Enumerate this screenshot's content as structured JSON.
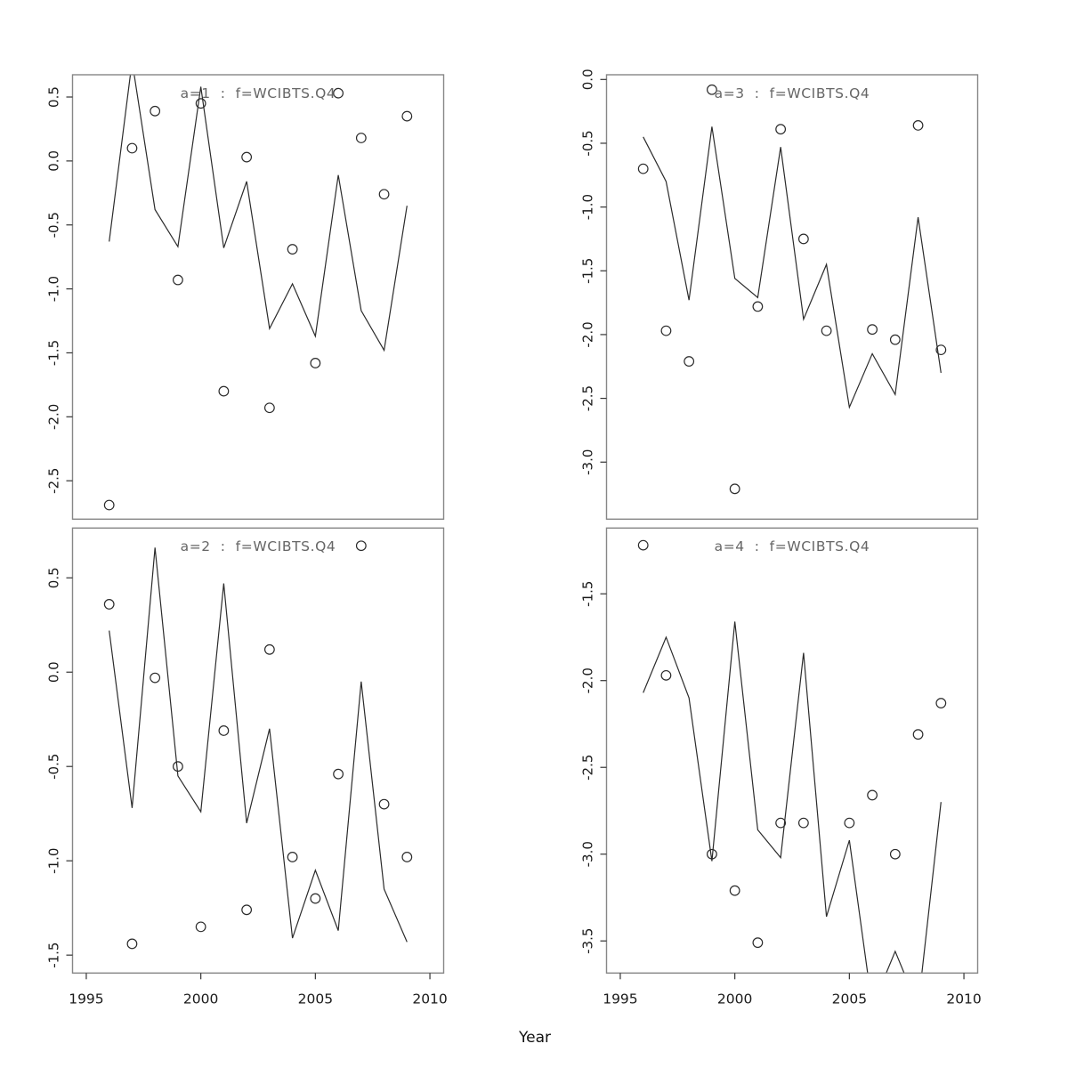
{
  "figure": {
    "background": "#ffffff",
    "colors": {
      "line": "#2b2b2b",
      "point": "#2b2b2b",
      "box": "#878787",
      "tick": "#333333",
      "tick_label": "#1a1a1a",
      "title": "#666666"
    }
  },
  "chart_data": {
    "type": "line",
    "description": "2x2 panel figure: observed points (circles) and fitted line per age group a=1..4, factor f=WCIBTS.Q4, versus Year",
    "grid": "off",
    "legend": "none",
    "x": {
      "label": "Year",
      "years": [
        1996,
        1997,
        1998,
        1999,
        2000,
        2001,
        2002,
        2003,
        2004,
        2005,
        2006,
        2007,
        2008,
        2009
      ],
      "ticks": [
        1995,
        2000,
        2005,
        2010
      ],
      "tick_labels": [
        "1995",
        "2000",
        "2005",
        "2010"
      ],
      "domain": [
        1994.4,
        2010.6
      ]
    },
    "panels": [
      {
        "title": "a=1  :  f=WCIBTS.Q4",
        "row": 0,
        "col": 0,
        "y_domain": [
          -2.8,
          0.674
        ],
        "y_ticks": [
          0.5,
          0.0,
          -0.5,
          -1.0,
          -1.5,
          -2.0,
          -2.5
        ],
        "y_tick_labels": [
          "0.5",
          "0.0",
          "-0.5",
          "-1.0",
          "-1.5",
          "-2.0",
          "-2.5"
        ],
        "points": [
          -2.69,
          0.1,
          0.39,
          -0.93,
          0.45,
          -1.8,
          0.03,
          -1.93,
          -0.69,
          -1.58,
          0.53,
          0.18,
          -0.26,
          0.35
        ],
        "line": [
          -0.63,
          0.78,
          -0.38,
          -0.67,
          0.58,
          -0.68,
          -0.16,
          -1.31,
          -0.96,
          -1.37,
          -0.11,
          -1.17,
          -1.48,
          -0.35
        ]
      },
      {
        "title": "a=2  :  f=WCIBTS.Q4",
        "row": 1,
        "col": 0,
        "y_domain": [
          -1.595,
          0.764
        ],
        "y_ticks": [
          0.5,
          0.0,
          -0.5,
          -1.0,
          -1.5
        ],
        "y_tick_labels": [
          "0.5",
          "0.0",
          "-0.5",
          "-1.0",
          "-1.5"
        ],
        "points": [
          0.36,
          -1.44,
          -0.03,
          -0.5,
          -1.35,
          -0.31,
          -1.26,
          0.12,
          -0.98,
          -1.2,
          -0.54,
          0.67,
          -0.7,
          -0.98
        ],
        "line": [
          0.22,
          -0.72,
          0.66,
          -0.55,
          -0.74,
          0.47,
          -0.8,
          -0.3,
          -1.41,
          -1.05,
          -1.37,
          -0.05,
          -1.15,
          -1.43
        ]
      },
      {
        "title": "a=3  :  f=WCIBTS.Q4",
        "row": 0,
        "col": 1,
        "y_domain": [
          -3.447,
          0.037
        ],
        "y_ticks": [
          0.0,
          -0.5,
          -1.0,
          -1.5,
          -2.0,
          -2.5,
          -3.0
        ],
        "y_tick_labels": [
          "0.0",
          "-0.5",
          "-1.0",
          "-1.5",
          "-2.0",
          "-2.5",
          "-3.0"
        ],
        "points": [
          -0.7,
          -1.97,
          -2.21,
          -0.08,
          -3.21,
          -1.78,
          -0.39,
          -1.25,
          -1.97,
          null,
          -1.96,
          -2.04,
          -0.36,
          -2.12
        ],
        "line": [
          -0.45,
          -0.8,
          -1.73,
          -0.37,
          -1.56,
          -1.71,
          -0.53,
          -1.88,
          -1.45,
          -2.57,
          -2.15,
          -2.47,
          -1.08,
          -2.3
        ]
      },
      {
        "title": "a=4  :  f=WCIBTS.Q4",
        "row": 1,
        "col": 1,
        "y_domain": [
          -3.685,
          -1.121
        ],
        "y_ticks": [
          -1.5,
          -2.0,
          -2.5,
          -3.0,
          -3.5
        ],
        "y_tick_labels": [
          "-1.5",
          "-2.0",
          "-2.5",
          "-3.0",
          "-3.5"
        ],
        "points": [
          -1.22,
          -1.97,
          null,
          -3.0,
          -3.21,
          -3.51,
          -2.82,
          -2.82,
          null,
          -2.82,
          -2.66,
          -3.0,
          -2.31,
          -2.13
        ],
        "line": [
          -2.07,
          -1.75,
          -2.1,
          -3.04,
          -1.66,
          -2.86,
          -3.02,
          -1.84,
          -3.36,
          -2.92,
          -3.88,
          -3.56,
          -3.88,
          -2.7
        ]
      }
    ]
  }
}
